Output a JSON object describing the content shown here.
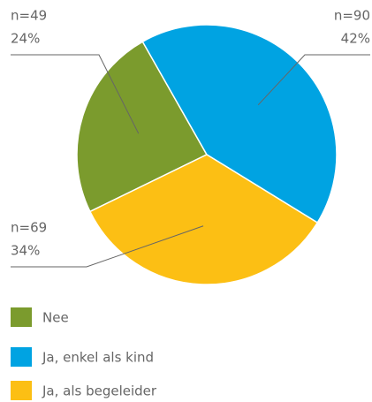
{
  "chart_data": {
    "type": "pie",
    "categories": [
      "Nee",
      "Ja, enkel als kind",
      "Ja, als begeleider"
    ],
    "values": [
      24,
      42,
      34
    ],
    "value_labels": [
      "24%",
      "42%",
      "34%"
    ],
    "count_labels": [
      "n=49",
      "n=90",
      "n=69"
    ],
    "colors": [
      "#7b9b2d",
      "#00a3e2",
      "#fcbf14"
    ],
    "legend": "bottom-left"
  }
}
